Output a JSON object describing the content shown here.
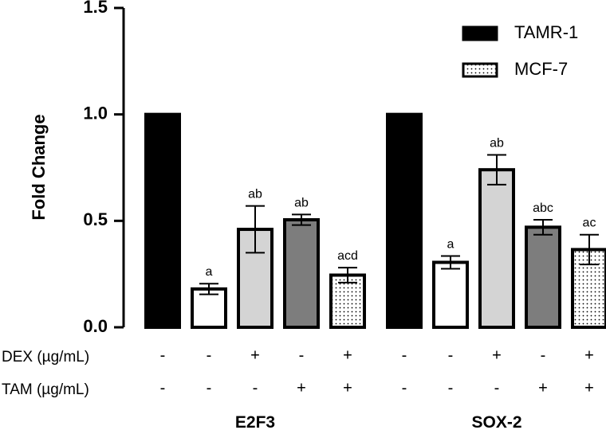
{
  "chart_data": {
    "type": "bar",
    "title": "",
    "xlabel": "",
    "ylabel": "Fold Change",
    "ylim": [
      0,
      1.5
    ],
    "yticks": [
      "0.0",
      "0.5",
      "1.0",
      "1.5"
    ],
    "ytick_values": [
      0,
      0.5,
      1.0,
      1.5
    ],
    "legend": [
      {
        "name": "TAMR-1",
        "pattern": "black"
      },
      {
        "name": "MCF-7",
        "pattern": "dotted"
      }
    ],
    "treatment_rows": [
      {
        "label": "DEX (µg/mL)",
        "signs": [
          "-",
          "-",
          "+",
          "-",
          "+",
          "-",
          "-",
          "+",
          "-",
          "+"
        ]
      },
      {
        "label": "TAM (µg/mL)",
        "signs": [
          "-",
          "-",
          "-",
          "+",
          "+",
          "-",
          "-",
          "-",
          "+",
          "+"
        ]
      }
    ],
    "groups": [
      {
        "name": "E2F3",
        "bars": [
          {
            "value": 1.0,
            "error": 0,
            "label": "",
            "fill": "#000000",
            "pattern": "solid"
          },
          {
            "value": 0.18,
            "error": 0.025,
            "label": "a",
            "fill": "#ffffff",
            "pattern": "solid"
          },
          {
            "value": 0.46,
            "error": 0.11,
            "label": "ab",
            "fill": "#d4d4d4",
            "pattern": "solid"
          },
          {
            "value": 0.505,
            "error": 0.025,
            "label": "ab",
            "fill": "#7d7d7d",
            "pattern": "solid"
          },
          {
            "value": 0.245,
            "error": 0.035,
            "label": "acd",
            "fill": "#ffffff",
            "pattern": "dotted"
          }
        ]
      },
      {
        "name": "SOX-2",
        "bars": [
          {
            "value": 1.0,
            "error": 0,
            "label": "",
            "fill": "#000000",
            "pattern": "solid"
          },
          {
            "value": 0.305,
            "error": 0.03,
            "label": "a",
            "fill": "#ffffff",
            "pattern": "solid"
          },
          {
            "value": 0.74,
            "error": 0.07,
            "label": "ab",
            "fill": "#d4d4d4",
            "pattern": "solid"
          },
          {
            "value": 0.47,
            "error": 0.035,
            "label": "abc",
            "fill": "#7d7d7d",
            "pattern": "solid"
          },
          {
            "value": 0.365,
            "error": 0.07,
            "label": "ac",
            "fill": "#ffffff",
            "pattern": "dotted"
          }
        ]
      }
    ]
  }
}
